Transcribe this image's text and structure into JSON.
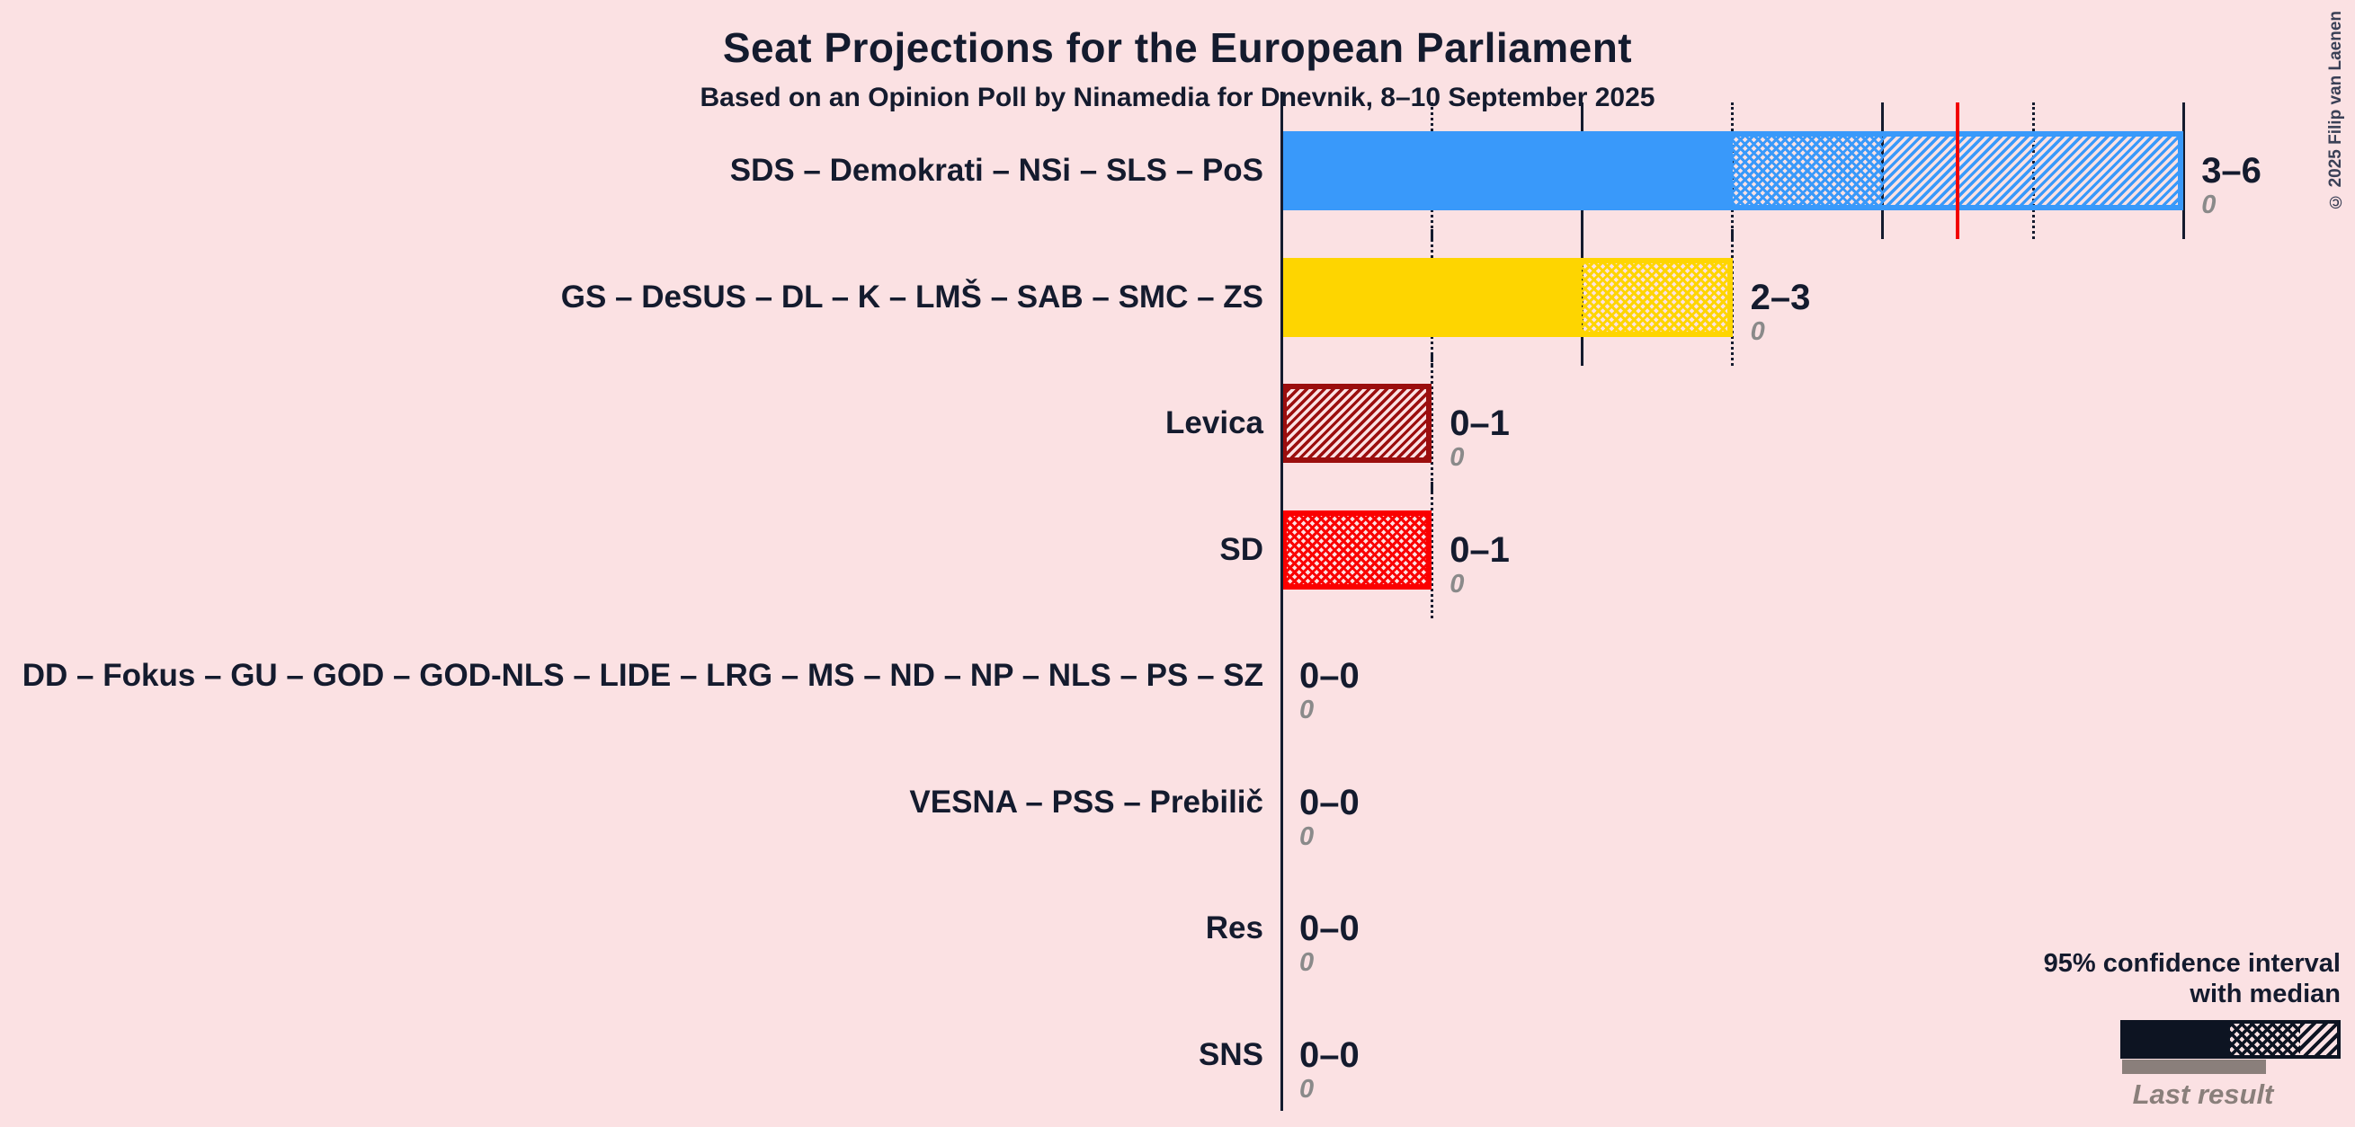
{
  "chart_data": {
    "type": "bar",
    "orientation": "horizontal",
    "title": "Seat Projections for the European Parliament",
    "subtitle": "Based on an Opinion Poll by Ninamedia for Dnevnik, 8–10 September 2025",
    "x_axis": {
      "min": 0,
      "max": 7,
      "majority_line": 4.5,
      "gridlines": "solid at even seats, dotted at odd seats"
    },
    "rows": [
      {
        "label": "SDS – Demokrati – NSi – SLS – PoS",
        "ci_low": 3,
        "median": 4,
        "ci_high": 6,
        "value_label": "3–6",
        "last_result": "0",
        "color": "#3999FA"
      },
      {
        "label": "GS – DeSUS – DL – K – LMŠ – SAB – SMC – ZS",
        "ci_low": 2,
        "median": 3,
        "ci_high": 3,
        "value_label": "2–3",
        "last_result": "0",
        "color": "#FED500"
      },
      {
        "label": "Levica",
        "ci_low": 0,
        "median": 0,
        "ci_high": 1,
        "value_label": "0–1",
        "last_result": "0",
        "color": "#9B0E0E"
      },
      {
        "label": "SD",
        "ci_low": 0,
        "median": 1,
        "ci_high": 1,
        "value_label": "0–1",
        "last_result": "0",
        "color": "#FA0000"
      },
      {
        "label": "DD – Fokus – GU – GOD – GOD-NLS – LIDE – LRG – MS – ND – NP – NLS – PS – SZ",
        "ci_low": 0,
        "median": 0,
        "ci_high": 0,
        "value_label": "0–0",
        "last_result": "0",
        "color": "#141B2E"
      },
      {
        "label": "VESNA – PSS – Prebilič",
        "ci_low": 0,
        "median": 0,
        "ci_high": 0,
        "value_label": "0–0",
        "last_result": "0",
        "color": "#141B2E"
      },
      {
        "label": "Res",
        "ci_low": 0,
        "median": 0,
        "ci_high": 0,
        "value_label": "0–0",
        "last_result": "0",
        "color": "#141B2E"
      },
      {
        "label": "SNS",
        "ci_low": 0,
        "median": 0,
        "ci_high": 0,
        "value_label": "0–0",
        "last_result": "0",
        "color": "#141B2E"
      }
    ]
  },
  "legend": {
    "line1": "95% confidence interval",
    "line2": "with median",
    "last_result_label": "Last result"
  },
  "copyright": "© 2025 Filip van Laenen",
  "colors": {
    "background": "#FBE1E3",
    "text": "#141B2E",
    "majority_line": "#F20000",
    "last_result_gray": "#8A7F7B",
    "legend_bar": "#0D1422"
  }
}
